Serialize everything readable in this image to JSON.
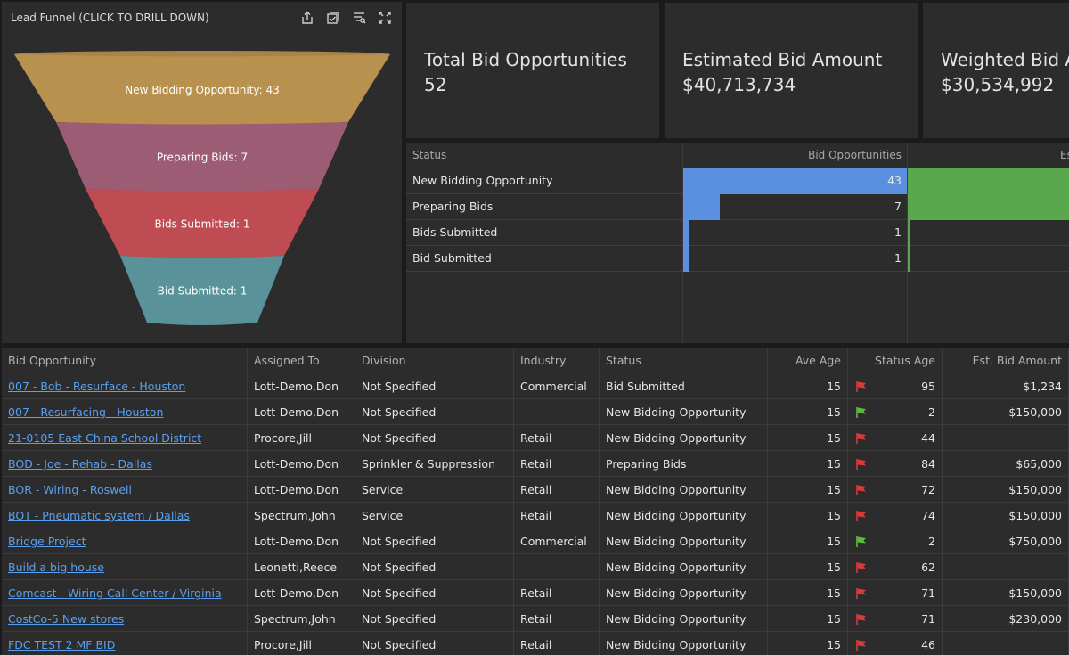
{
  "funnel": {
    "title": "Lead Funnel (CLICK TO DRILL DOWN)",
    "tools": [
      "export-icon",
      "select-icon",
      "filter-icon",
      "fullscreen-icon"
    ],
    "stages": [
      {
        "label": "New Bidding Opportunity: 43",
        "color": "#b8914f"
      },
      {
        "label": "Preparing Bids: 7",
        "color": "#9b5c74"
      },
      {
        "label": "Bids Submitted: 1",
        "color": "#c04c53"
      },
      {
        "label": "Bid Submitted: 1",
        "color": "#5a929a"
      }
    ]
  },
  "kpis": [
    {
      "label": "Total Bid Opportunities",
      "value": "52"
    },
    {
      "label": "Estimated Bid Amount",
      "value": "$40,713,734"
    },
    {
      "label": "Weighted Bid Amount",
      "value": "$30,534,992"
    }
  ],
  "status_table": {
    "headers": [
      "Status",
      "Bid Opportunities",
      "Es"
    ],
    "bar_color_blue": "#5b8fe0",
    "bar_color_green": "#5aa84e",
    "rows": [
      {
        "status": "New Bidding Opportunity",
        "count": "43",
        "count_value": 43,
        "est_share": 1.0
      },
      {
        "status": "Preparing Bids",
        "count": "7",
        "count_value": 7,
        "est_share": 1.0
      },
      {
        "status": "Bids Submitted",
        "count": "1",
        "count_value": 1,
        "est_share": 0.0
      },
      {
        "status": "Bid Submitted",
        "count": "1",
        "count_value": 1,
        "est_share": 0.0
      }
    ]
  },
  "grid": {
    "headers": [
      "Bid Opportunity",
      "Assigned To",
      "Division",
      "Industry",
      "Status",
      "Ave Age",
      "Status Age",
      "Est. Bid Amount"
    ],
    "rows": [
      {
        "bid": "007 - Bob - Resurface - Houston",
        "assigned": "Lott-Demo,Don",
        "division": "Not Specified",
        "industry": "Commercial",
        "status": "Bid Submitted",
        "ave_age": "15",
        "flag": "red",
        "status_age": "95",
        "amount": "$1,234"
      },
      {
        "bid": "007 - Resurfacing - Houston",
        "assigned": "Lott-Demo,Don",
        "division": "Not Specified",
        "industry": "",
        "status": "New Bidding Opportunity",
        "ave_age": "15",
        "flag": "green",
        "status_age": "2",
        "amount": "$150,000"
      },
      {
        "bid": "21-0105 East China School District",
        "assigned": "Procore,Jill",
        "division": "Not Specified",
        "industry": "Retail",
        "status": "New Bidding Opportunity",
        "ave_age": "15",
        "flag": "red",
        "status_age": "44",
        "amount": ""
      },
      {
        "bid": "BOD - Joe - Rehab - Dallas",
        "assigned": "Lott-Demo,Don",
        "division": "Sprinkler & Suppression",
        "industry": "Retail",
        "status": "Preparing Bids",
        "ave_age": "15",
        "flag": "red",
        "status_age": "84",
        "amount": "$65,000"
      },
      {
        "bid": "BOR - Wiring - Roswell",
        "assigned": "Lott-Demo,Don",
        "division": "Service",
        "industry": "Retail",
        "status": "New Bidding Opportunity",
        "ave_age": "15",
        "flag": "red",
        "status_age": "72",
        "amount": "$150,000"
      },
      {
        "bid": "BOT - Pneumatic system / Dallas",
        "assigned": "Spectrum,John",
        "division": "Service",
        "industry": "Retail",
        "status": "New Bidding Opportunity",
        "ave_age": "15",
        "flag": "red",
        "status_age": "74",
        "amount": "$150,000"
      },
      {
        "bid": "Bridge Project",
        "assigned": "Lott-Demo,Don",
        "division": "Not Specified",
        "industry": "Commercial",
        "status": "New Bidding Opportunity",
        "ave_age": "15",
        "flag": "green",
        "status_age": "2",
        "amount": "$750,000"
      },
      {
        "bid": "Build a big house",
        "assigned": "Leonetti,Reece",
        "division": "Not Specified",
        "industry": "",
        "status": "New Bidding Opportunity",
        "ave_age": "15",
        "flag": "red",
        "status_age": "62",
        "amount": ""
      },
      {
        "bid": "Comcast - Wiring Call Center / Virginia",
        "assigned": "Lott-Demo,Don",
        "division": "Not Specified",
        "industry": "Retail",
        "status": "New Bidding Opportunity",
        "ave_age": "15",
        "flag": "red",
        "status_age": "71",
        "amount": "$150,000"
      },
      {
        "bid": "CostCo-5 New stores",
        "assigned": "Spectrum,John",
        "division": "Not Specified",
        "industry": "Retail",
        "status": "New Bidding Opportunity",
        "ave_age": "15",
        "flag": "red",
        "status_age": "71",
        "amount": "$230,000"
      },
      {
        "bid": "FDC TEST 2 MF BID",
        "assigned": "Procore,Jill",
        "division": "Not Specified",
        "industry": "Retail",
        "status": "New Bidding Opportunity",
        "ave_age": "15",
        "flag": "red",
        "status_age": "46",
        "amount": ""
      }
    ]
  },
  "colors": {
    "flag_red": "#d83a3a",
    "flag_green": "#5fb840",
    "link": "#5aa0f0"
  }
}
